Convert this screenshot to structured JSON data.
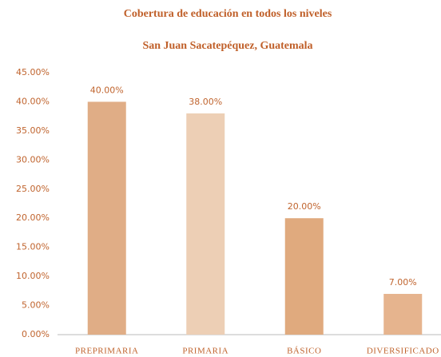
{
  "chart_data": {
    "type": "bar",
    "title": "Cobertura de educación en todos los niveles",
    "subtitle": "San Juan Sacatepéquez, Guatemala",
    "categories": [
      "PREPRIMARIA",
      "PRIMARIA",
      "BÁSICO",
      "DIVERSIFICADO"
    ],
    "values": [
      40,
      38,
      20,
      7
    ],
    "value_labels": [
      "40.00%",
      "38.00%",
      "20.00%",
      "7.00%"
    ],
    "colors": [
      "#e0ad86",
      "#edcfb5",
      "#e0aa7e",
      "#e6b48e"
    ],
    "ylim": [
      0,
      45
    ],
    "yticks": [
      {
        "value": 0,
        "label": "0.00%"
      },
      {
        "value": 5,
        "label": "5.00%"
      },
      {
        "value": 10,
        "label": "10.00%"
      },
      {
        "value": 15,
        "label": "15.00%"
      },
      {
        "value": 20,
        "label": "20.00%"
      },
      {
        "value": 25,
        "label": "25.00%"
      },
      {
        "value": 30,
        "label": "30.00%"
      },
      {
        "value": 35,
        "label": "35.00%"
      },
      {
        "value": 40,
        "label": "40.00%"
      },
      {
        "value": 45,
        "label": "45.00%"
      }
    ],
    "grid": false
  }
}
